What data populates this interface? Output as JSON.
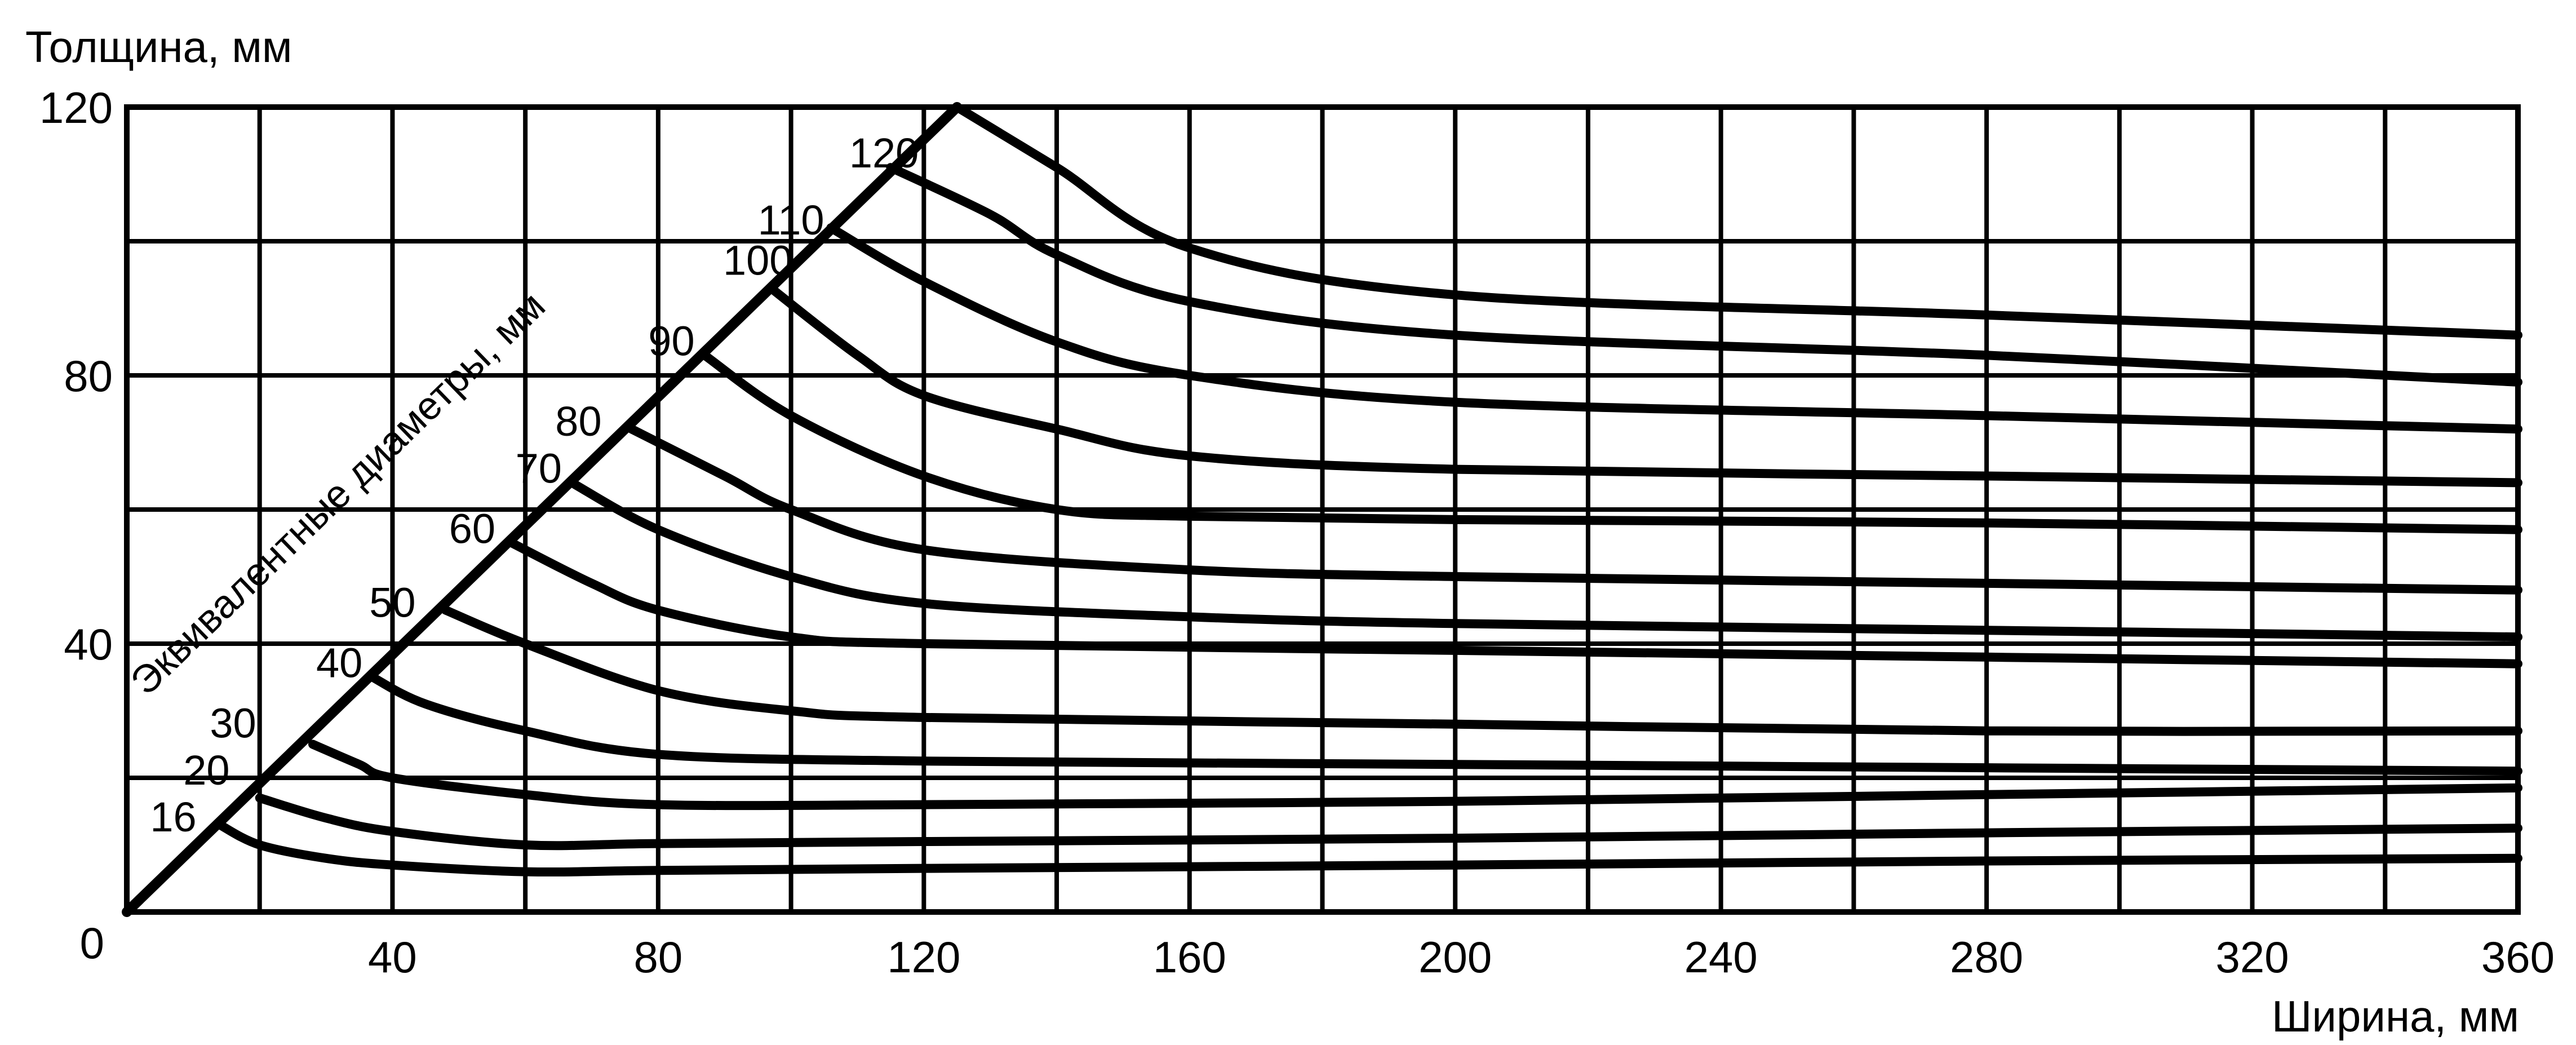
{
  "chart_data": {
    "type": "line",
    "title": "",
    "xlabel": "Ширина, мм",
    "ylabel": "Толщина, мм",
    "diagonal_label": "Эквивалентные диаметры, мм",
    "xlim": [
      0,
      360
    ],
    "ylim": [
      0,
      120
    ],
    "x_ticks": [
      {
        "v": 0,
        "label": "0"
      },
      {
        "v": 40,
        "label": "40"
      },
      {
        "v": 80,
        "label": "80"
      },
      {
        "v": 120,
        "label": "120"
      },
      {
        "v": 160,
        "label": "160"
      },
      {
        "v": 200,
        "label": "200"
      },
      {
        "v": 240,
        "label": "240"
      },
      {
        "v": 280,
        "label": "280"
      },
      {
        "v": 320,
        "label": "320"
      },
      {
        "v": 360,
        "label": "360"
      }
    ],
    "y_ticks": [
      {
        "v": 40,
        "label": "40"
      },
      {
        "v": 80,
        "label": "80"
      },
      {
        "v": 120,
        "label": "120"
      }
    ],
    "grid": true,
    "grid_x_step": 20,
    "grid_y_step": 20,
    "diagonal": [
      [
        0,
        0
      ],
      [
        125,
        120
      ]
    ],
    "series": [
      {
        "name": "16",
        "points": [
          [
            14,
            13
          ],
          [
            20,
            10
          ],
          [
            30,
            8
          ],
          [
            40,
            7
          ],
          [
            60,
            6
          ],
          [
            80,
            6.2
          ],
          [
            120,
            6.5
          ],
          [
            200,
            7
          ],
          [
            280,
            7.6
          ],
          [
            360,
            8
          ]
        ]
      },
      {
        "name": "20",
        "points": [
          [
            20,
            17
          ],
          [
            30,
            14
          ],
          [
            40,
            12
          ],
          [
            60,
            10
          ],
          [
            80,
            10.2
          ],
          [
            120,
            10.5
          ],
          [
            200,
            11
          ],
          [
            280,
            11.8
          ],
          [
            360,
            12.5
          ]
        ]
      },
      {
        "name": "30",
        "points": [
          [
            28,
            25
          ],
          [
            35,
            22
          ],
          [
            40,
            20
          ],
          [
            60,
            17.5
          ],
          [
            80,
            16
          ],
          [
            120,
            16
          ],
          [
            200,
            16.5
          ],
          [
            280,
            17.5
          ],
          [
            360,
            18.5
          ]
        ]
      },
      {
        "name": "40",
        "points": [
          [
            37,
            35
          ],
          [
            45,
            31
          ],
          [
            60,
            27
          ],
          [
            80,
            23.5
          ],
          [
            120,
            22.5
          ],
          [
            200,
            22
          ],
          [
            280,
            21.5
          ],
          [
            360,
            21
          ]
        ]
      },
      {
        "name": "50",
        "points": [
          [
            48,
            45
          ],
          [
            60,
            40
          ],
          [
            80,
            33
          ],
          [
            100,
            30
          ],
          [
            120,
            29
          ],
          [
            200,
            28
          ],
          [
            280,
            27
          ],
          [
            360,
            27
          ]
        ]
      },
      {
        "name": "60",
        "points": [
          [
            58,
            55
          ],
          [
            70,
            49
          ],
          [
            80,
            45
          ],
          [
            100,
            41
          ],
          [
            120,
            40
          ],
          [
            200,
            39
          ],
          [
            280,
            38
          ],
          [
            360,
            37
          ]
        ]
      },
      {
        "name": "70",
        "points": [
          [
            67,
            64
          ],
          [
            80,
            57
          ],
          [
            100,
            50
          ],
          [
            120,
            46
          ],
          [
            160,
            44
          ],
          [
            200,
            43
          ],
          [
            280,
            42
          ],
          [
            360,
            41
          ]
        ]
      },
      {
        "name": "80",
        "points": [
          [
            76,
            72
          ],
          [
            90,
            65
          ],
          [
            100,
            60
          ],
          [
            120,
            54
          ],
          [
            160,
            51
          ],
          [
            200,
            50
          ],
          [
            280,
            49
          ],
          [
            360,
            48
          ]
        ]
      },
      {
        "name": "90",
        "points": [
          [
            87,
            83
          ],
          [
            100,
            74
          ],
          [
            120,
            65
          ],
          [
            140,
            60
          ],
          [
            160,
            59
          ],
          [
            200,
            58.5
          ],
          [
            280,
            58
          ],
          [
            360,
            57
          ]
        ]
      },
      {
        "name": "100",
        "points": [
          [
            97,
            93
          ],
          [
            110,
            83
          ],
          [
            120,
            77
          ],
          [
            140,
            72
          ],
          [
            160,
            68
          ],
          [
            200,
            66
          ],
          [
            280,
            65
          ],
          [
            360,
            64
          ]
        ]
      },
      {
        "name": "110",
        "points": [
          [
            106,
            102
          ],
          [
            120,
            94
          ],
          [
            140,
            85
          ],
          [
            160,
            80
          ],
          [
            200,
            76
          ],
          [
            280,
            74
          ],
          [
            360,
            72
          ]
        ]
      },
      {
        "name": "120",
        "points": [
          [
            115,
            111
          ],
          [
            130,
            104
          ],
          [
            140,
            98
          ],
          [
            160,
            91
          ],
          [
            200,
            86
          ],
          [
            280,
            83
          ],
          [
            360,
            79
          ]
        ]
      },
      {
        "name": "",
        "points": [
          [
            125,
            120
          ],
          [
            140,
            111
          ],
          [
            160,
            99
          ],
          [
            200,
            92
          ],
          [
            280,
            89
          ],
          [
            360,
            86
          ]
        ]
      }
    ],
    "series_labels": [
      {
        "text": "16",
        "x": 7,
        "y": 12
      },
      {
        "text": "20",
        "x": 12,
        "y": 19
      },
      {
        "text": "30",
        "x": 16,
        "y": 26
      },
      {
        "text": "40",
        "x": 32,
        "y": 35
      },
      {
        "text": "50",
        "x": 40,
        "y": 44
      },
      {
        "text": "60",
        "x": 52,
        "y": 55
      },
      {
        "text": "70",
        "x": 62,
        "y": 64
      },
      {
        "text": "80",
        "x": 68,
        "y": 71
      },
      {
        "text": "90",
        "x": 82,
        "y": 83
      },
      {
        "text": "100",
        "x": 95,
        "y": 95
      },
      {
        "text": "110",
        "x": 100,
        "y": 101
      },
      {
        "text": "120",
        "x": 114,
        "y": 111
      }
    ]
  }
}
